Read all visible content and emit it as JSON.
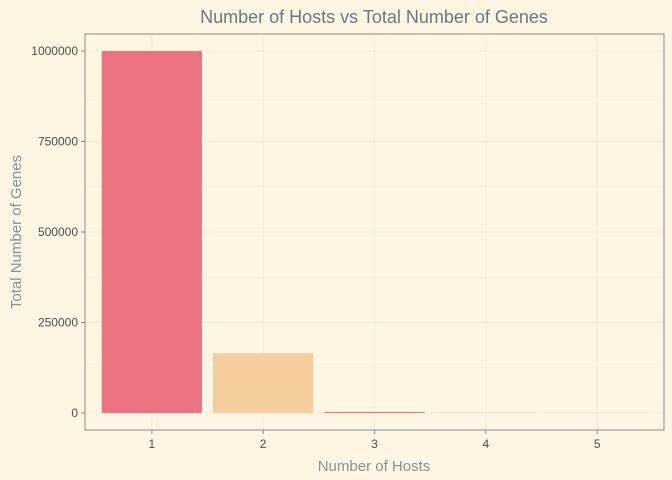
{
  "chart_data": {
    "type": "bar",
    "title": "Number of Hosts vs Total Number of Genes",
    "xlabel": "Number of Hosts",
    "ylabel": "Total Number of Genes",
    "categories": [
      "1",
      "2",
      "3",
      "4",
      "5"
    ],
    "values": [
      1000000,
      165000,
      3000,
      300,
      50
    ],
    "bar_colors": [
      "#ec7482",
      "#f6cd9c",
      "#ec7482",
      "#ec7482",
      "#ec7482"
    ],
    "ylim": [
      -47000,
      1047000
    ],
    "y_ticks": [
      0,
      250000,
      500000,
      750000,
      1000000
    ],
    "y_tick_labels": [
      "0",
      "250000",
      "500000",
      "750000",
      "1000000"
    ],
    "grid": true,
    "legend": "none"
  },
  "colors": {
    "background": "#fdf6e3",
    "grid": "#f0e9d6",
    "panel_border": "#8c8c8c",
    "title": "#657b83",
    "axis_title": "#839496"
  }
}
